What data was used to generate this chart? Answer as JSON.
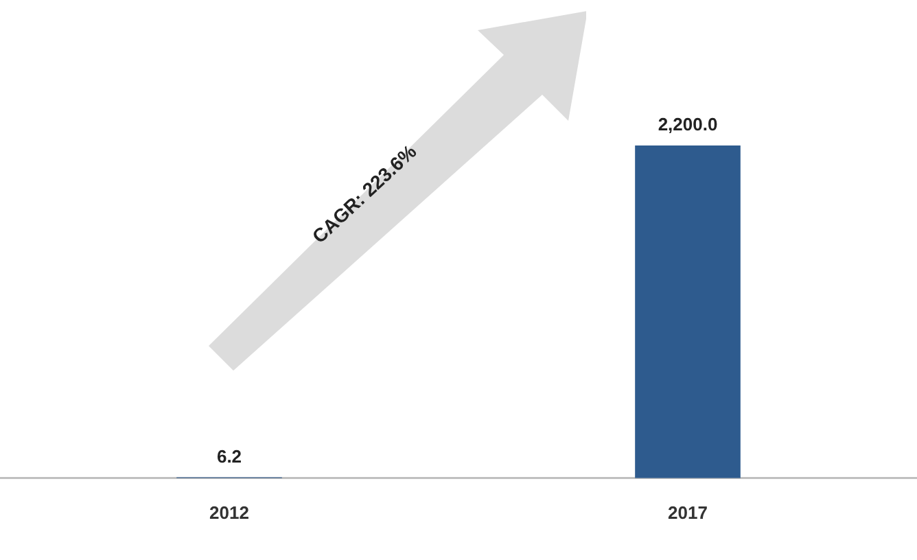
{
  "chart_data": {
    "type": "bar",
    "categories": [
      "2012",
      "2017"
    ],
    "values": [
      6.2,
      2200.0
    ],
    "value_labels": [
      "6.2",
      "2,200.0"
    ],
    "color": "#2e5b8e",
    "annotations": [
      "CAGR: 223.6%"
    ],
    "grid": false,
    "legend": false
  }
}
